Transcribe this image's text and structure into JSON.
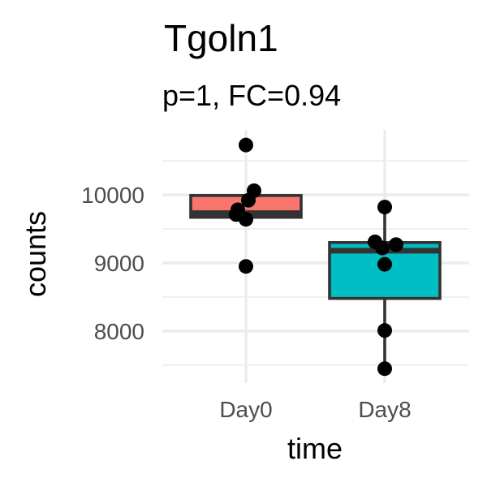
{
  "chart_data": {
    "type": "boxplot",
    "title": "Tgoln1",
    "subtitle": "p=1, FC=0.94",
    "xlabel": "time",
    "ylabel": "counts",
    "categories": [
      "Day0",
      "Day8"
    ],
    "ylim": [
      7300,
      10900
    ],
    "y_ticks": [
      8000,
      9000,
      10000
    ],
    "y_tick_labels": [
      "8000",
      "9000",
      "10000"
    ],
    "grid": true,
    "legend": "none",
    "groups": [
      {
        "name": "Day0",
        "color": "#f8766d",
        "box": {
          "min": 9640,
          "q1": 9670,
          "median": 9730,
          "q3": 9990,
          "max": 9990
        },
        "points": [
          10730,
          10060,
          9920,
          9780,
          9710,
          9640,
          8950
        ]
      },
      {
        "name": "Day8",
        "color": "#00bfc4",
        "box": {
          "min": 7450,
          "q1": 8480,
          "median": 9180,
          "q3": 9300,
          "max": 9820
        },
        "points": [
          9820,
          9310,
          9270,
          9220,
          8980,
          8010,
          7450
        ]
      }
    ]
  }
}
